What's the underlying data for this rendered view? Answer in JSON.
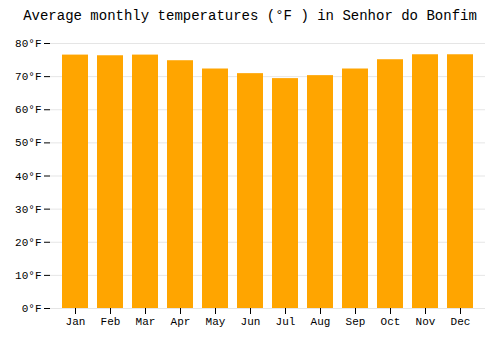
{
  "chart_data": {
    "type": "bar",
    "title": "Average monthly temperatures (°F ) in Senhor do Bonfim",
    "categories": [
      "Jan",
      "Feb",
      "Mar",
      "Apr",
      "May",
      "Jun",
      "Jul",
      "Aug",
      "Sep",
      "Oct",
      "Nov",
      "Dec"
    ],
    "values": [
      76.5,
      76.3,
      76.5,
      74.8,
      72.3,
      70.9,
      69.4,
      70.3,
      72.3,
      75.1,
      76.6,
      76.6
    ],
    "color": "#FFA500",
    "ylim": [
      0,
      80
    ],
    "yticks": [
      {
        "value": 0,
        "label": "0°F"
      },
      {
        "value": 10,
        "label": "10°F"
      },
      {
        "value": 20,
        "label": "20°F"
      },
      {
        "value": 30,
        "label": "30°F"
      },
      {
        "value": 40,
        "label": "40°F"
      },
      {
        "value": 50,
        "label": "50°F"
      },
      {
        "value": 60,
        "label": "60°F"
      },
      {
        "value": 70,
        "label": "70°F"
      },
      {
        "value": 80,
        "label": "80°F"
      }
    ],
    "grid": true
  }
}
